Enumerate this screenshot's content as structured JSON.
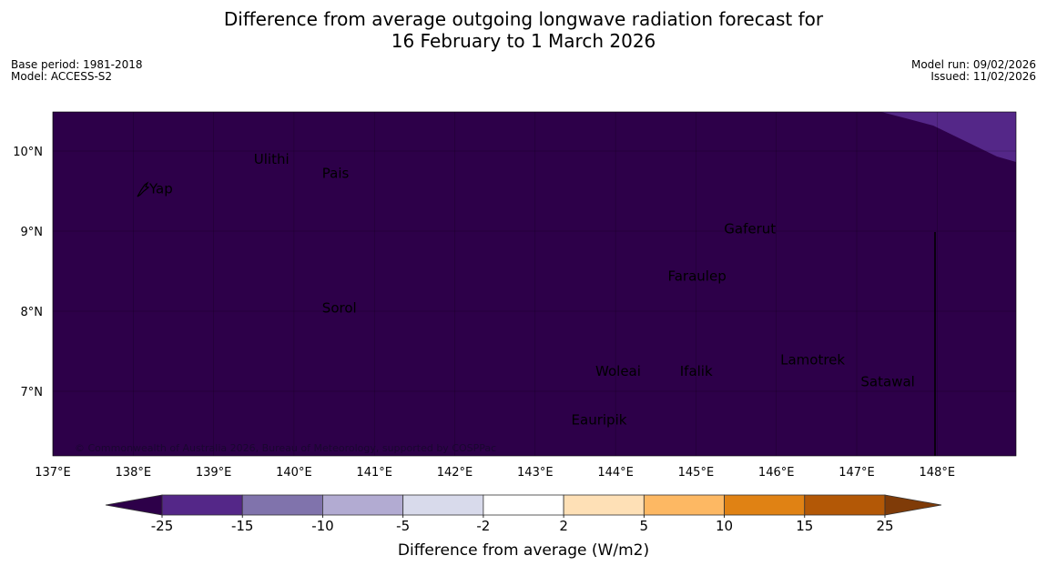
{
  "title": {
    "line1": "Difference from average outgoing longwave radiation forecast for",
    "line2": "16 February to 1 March 2026"
  },
  "meta_left": {
    "base_period": "Base period: 1981-2018",
    "model": "Model: ACCESS-S2"
  },
  "meta_right": {
    "model_run": "Model run: 09/02/2026",
    "issued": "Issued: 11/02/2026"
  },
  "map": {
    "lon_range": [
      137,
      149
    ],
    "lat_range": [
      6.2,
      10.5
    ],
    "background_color": "#2d0049",
    "anomaly_patch_color": "#542788",
    "x_ticks": [
      {
        "value": 137,
        "label": "137°E"
      },
      {
        "value": 138,
        "label": "138°E"
      },
      {
        "value": 139,
        "label": "139°E"
      },
      {
        "value": 140,
        "label": "140°E"
      },
      {
        "value": 141,
        "label": "141°E"
      },
      {
        "value": 142,
        "label": "142°E"
      },
      {
        "value": 143,
        "label": "143°E"
      },
      {
        "value": 144,
        "label": "144°E"
      },
      {
        "value": 145,
        "label": "145°E"
      },
      {
        "value": 146,
        "label": "146°E"
      },
      {
        "value": 147,
        "label": "147°E"
      },
      {
        "value": 148,
        "label": "148°E"
      }
    ],
    "y_ticks": [
      {
        "value": 10,
        "label": "10°N"
      },
      {
        "value": 9,
        "label": "9°N"
      },
      {
        "value": 8,
        "label": "8°N"
      },
      {
        "value": 7,
        "label": "7°N"
      }
    ],
    "places": [
      {
        "name": "Ulithi",
        "lon": 139.5,
        "lat": 9.9
      },
      {
        "name": "Pais",
        "lon": 140.35,
        "lat": 9.72
      },
      {
        "name": "Yap",
        "lon": 138.2,
        "lat": 9.53
      },
      {
        "name": "Gaferut",
        "lon": 145.35,
        "lat": 9.03
      },
      {
        "name": "Faraulep",
        "lon": 144.65,
        "lat": 8.44
      },
      {
        "name": "Sorol",
        "lon": 140.35,
        "lat": 8.04
      },
      {
        "name": "Lamotrek",
        "lon": 146.05,
        "lat": 7.39
      },
      {
        "name": "Satawal",
        "lon": 147.05,
        "lat": 7.12
      },
      {
        "name": "Woleai",
        "lon": 143.75,
        "lat": 7.25
      },
      {
        "name": "Ifalik",
        "lon": 144.8,
        "lat": 7.25
      },
      {
        "name": "Eauripik",
        "lon": 143.45,
        "lat": 6.64
      }
    ],
    "copyright": "© Commonwealth of Australia 2026, Bureau of Meteorology, supported by COSPPac"
  },
  "colorbar": {
    "label": "Difference from average (W/m2)",
    "ticks": [
      "-25",
      "-15",
      "-10",
      "-5",
      "-2",
      "2",
      "5",
      "10",
      "15",
      "25"
    ],
    "under_color": "#2d0049",
    "over_color": "#7f3b08",
    "bins": [
      {
        "from": "-25",
        "to": "-15",
        "color": "#542788"
      },
      {
        "from": "-15",
        "to": "-10",
        "color": "#8073ac"
      },
      {
        "from": "-10",
        "to": "-5",
        "color": "#b2abd2"
      },
      {
        "from": "-5",
        "to": "-2",
        "color": "#d8daeb"
      },
      {
        "from": "-2",
        "to": "2",
        "color": "#ffffff"
      },
      {
        "from": "2",
        "to": "5",
        "color": "#fee0b6"
      },
      {
        "from": "5",
        "to": "10",
        "color": "#fdb863"
      },
      {
        "from": "10",
        "to": "15",
        "color": "#e08214"
      },
      {
        "from": "15",
        "to": "25",
        "color": "#b35806"
      }
    ]
  }
}
